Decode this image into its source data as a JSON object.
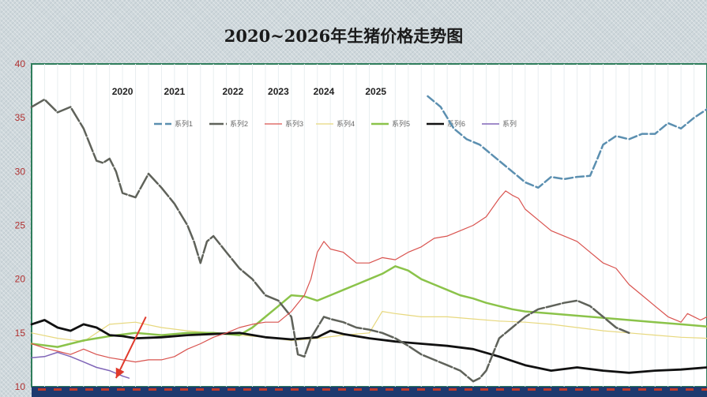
{
  "chart_data": {
    "type": "line",
    "title": "2020~2026年生猪价格走势图",
    "ylim": [
      10,
      40
    ],
    "yticks": [
      "10",
      "15",
      "20",
      "25",
      "30",
      "35",
      "40"
    ],
    "xlim": [
      0,
      52
    ],
    "year_labels": [
      "2020",
      "2021",
      "2022",
      "2023",
      "2024",
      "2025"
    ],
    "year_label_x": [
      7,
      11,
      15.5,
      19,
      22.5,
      26.5
    ],
    "legend_position": "top",
    "grid": "vertical",
    "series": [
      {
        "name": "系列1",
        "color": "#5b8fb0",
        "dash": "10,4",
        "width": 2.5,
        "x": [
          30.5,
          31.5,
          32.5,
          33.5,
          34.5,
          35.5,
          36.5,
          37.5,
          38,
          39,
          40,
          41,
          42,
          43,
          43.5,
          44,
          45,
          46,
          47,
          48,
          49,
          50,
          51,
          52
        ],
        "y": [
          37,
          36,
          34,
          33,
          32.5,
          31.5,
          30.5,
          29.5,
          29,
          28.5,
          29.5,
          29.3,
          29.5,
          29.6,
          31,
          32.5,
          33.3,
          33,
          33.5,
          33.5,
          34.5,
          34,
          35,
          35.8
        ]
      },
      {
        "name": "系列2",
        "color": "#5f625a",
        "dash": "18,3",
        "width": 2.5,
        "x": [
          0,
          1,
          2,
          3,
          4,
          4.5,
          5,
          5.5,
          6,
          6.5,
          7,
          8,
          9,
          10,
          11,
          12,
          12.5,
          13,
          13.5,
          14,
          15,
          16,
          17,
          18,
          19,
          20,
          20.5,
          21,
          21.5,
          22,
          22.5,
          23,
          24,
          25,
          26,
          27,
          28,
          29,
          30,
          31,
          32,
          33,
          34,
          34.5,
          35,
          35.5,
          36,
          37,
          38,
          39,
          40,
          41,
          42,
          43,
          44,
          45,
          46
        ],
        "y": [
          36,
          36.7,
          35.5,
          36,
          34,
          32.5,
          31,
          30.8,
          31.2,
          30,
          28,
          27.6,
          29.8,
          28.5,
          27,
          25,
          23.5,
          21.5,
          23.5,
          24,
          22.5,
          21,
          20,
          18.5,
          18,
          16.5,
          13,
          12.8,
          14.5,
          15.5,
          16.5,
          16.3,
          16,
          15.5,
          15.3,
          15,
          14.5,
          13.8,
          13,
          12.5,
          12,
          11.5,
          10.5,
          10.8,
          11.5,
          13,
          14.5,
          15.5,
          16.5,
          17.2,
          17.5,
          17.8,
          18,
          17.5,
          16.5,
          15.5,
          15
        ]
      },
      {
        "name": "系列3",
        "color": "#d9534f",
        "dash": "",
        "width": 1.2,
        "x": [
          0,
          1,
          2,
          3,
          4,
          5,
          6,
          7,
          8,
          9,
          10,
          11,
          12,
          13,
          14,
          15,
          16,
          17,
          18,
          19,
          20,
          21,
          21.5,
          22,
          22.5,
          23,
          24,
          25,
          26,
          27,
          28,
          29,
          30,
          31,
          32,
          33,
          34,
          35,
          36,
          36.5,
          37,
          37.5,
          38,
          39,
          40,
          41,
          42,
          43,
          44,
          45,
          46,
          47,
          48,
          49,
          50,
          50.5,
          51,
          51.5,
          52
        ],
        "y": [
          14,
          13.6,
          13.3,
          13,
          13.5,
          13,
          12.7,
          12.5,
          12.3,
          12.5,
          12.5,
          12.8,
          13.5,
          14,
          14.6,
          15,
          15.5,
          15.8,
          16,
          16,
          17,
          18.5,
          20,
          22.5,
          23.5,
          22.8,
          22.5,
          21.5,
          21.5,
          22,
          21.8,
          22.5,
          23,
          23.8,
          24,
          24.5,
          25,
          25.8,
          27.5,
          28.2,
          27.8,
          27.5,
          26.5,
          25.5,
          24.5,
          24,
          23.5,
          22.5,
          21.5,
          21,
          19.5,
          18.5,
          17.5,
          16.5,
          16,
          16.8,
          16.5,
          16.2,
          16.5
        ]
      },
      {
        "name": "系列4",
        "color": "#e7d87e",
        "dash": "",
        "width": 1.2,
        "x": [
          0,
          2,
          4,
          6,
          8,
          10,
          12,
          14,
          16,
          18,
          20,
          22,
          24,
          26,
          27,
          28,
          30,
          32,
          34,
          36,
          38,
          40,
          42,
          44,
          46,
          48,
          50,
          52
        ],
        "y": [
          15,
          14.5,
          14.2,
          15.8,
          16,
          15.5,
          15.2,
          15,
          14.8,
          14.6,
          14.3,
          14.5,
          14.8,
          15,
          17,
          16.8,
          16.5,
          16.5,
          16.3,
          16.1,
          16,
          15.8,
          15.5,
          15.2,
          15,
          14.8,
          14.6,
          14.5
        ]
      },
      {
        "name": "系列5",
        "color": "#8bc34a",
        "dash": "",
        "width": 2.5,
        "x": [
          0,
          2,
          4,
          6,
          8,
          10,
          12,
          14,
          16,
          17,
          18,
          19,
          20,
          21,
          22,
          23,
          24,
          25,
          26,
          27,
          28,
          29,
          30,
          31,
          32,
          33,
          34,
          35,
          36,
          37,
          38,
          40,
          42,
          44,
          46,
          48,
          50,
          52
        ],
        "y": [
          14,
          13.7,
          14.3,
          14.7,
          15,
          14.8,
          15,
          15,
          14.8,
          15.5,
          16.5,
          17.5,
          18.5,
          18.4,
          18,
          18.5,
          19,
          19.5,
          20,
          20.5,
          21.2,
          20.8,
          20,
          19.5,
          19,
          18.5,
          18.2,
          17.8,
          17.5,
          17.2,
          17,
          16.8,
          16.6,
          16.4,
          16.2,
          16,
          15.8,
          15.6
        ]
      },
      {
        "name": "系列6",
        "color": "#111111",
        "dash": "",
        "width": 2.8,
        "x": [
          0,
          1,
          2,
          3,
          4,
          5,
          6,
          7,
          8,
          10,
          12,
          14,
          16,
          18,
          20,
          22,
          23,
          24,
          26,
          28,
          30,
          32,
          34,
          36,
          38,
          40,
          42,
          44,
          46,
          48,
          50,
          52
        ],
        "y": [
          15.8,
          16.2,
          15.5,
          15.2,
          15.8,
          15.5,
          14.8,
          14.7,
          14.5,
          14.6,
          14.8,
          14.9,
          15,
          14.6,
          14.4,
          14.6,
          15.2,
          14.9,
          14.5,
          14.2,
          14,
          13.8,
          13.5,
          12.8,
          12,
          11.5,
          11.8,
          11.5,
          11.3,
          11.5,
          11.6,
          11.8
        ]
      },
      {
        "name": "系列",
        "color": "#8066b8",
        "dash": "",
        "width": 1.5,
        "x": [
          0,
          1,
          2,
          3,
          4,
          5,
          6,
          7,
          7.5
        ],
        "y": [
          12.7,
          12.8,
          13.2,
          12.8,
          12.3,
          11.8,
          11.5,
          11,
          10.8
        ]
      }
    ],
    "annotations": [
      {
        "type": "arrow",
        "color": "#e03a2c",
        "from": [
          8.8,
          16.5
        ],
        "to": [
          6.5,
          10.8
        ]
      }
    ]
  }
}
